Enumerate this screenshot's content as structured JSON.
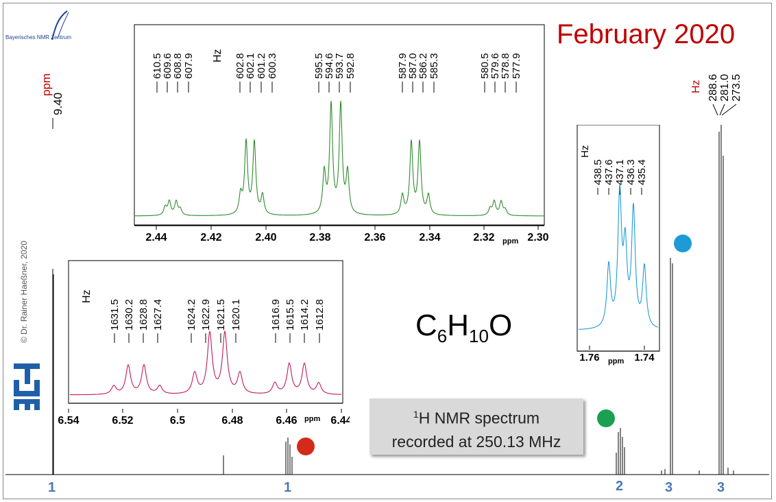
{
  "page": {
    "title": "February 2020",
    "formula": {
      "c": "C",
      "c_n": "6",
      "h": "H",
      "h_n": "10",
      "o": "O"
    },
    "logo_text": "Bayerisches NMR Zentrum",
    "copyright": "© Dr. Rainer Haeßner, 2020",
    "callout": {
      "sup": "1",
      "line1": "H NMR spectrum",
      "line2": "recorded at 250.13 MHz"
    },
    "main_peak_labels": {
      "ppm_unit": "ppm",
      "ppm_value": "9.40",
      "hz_unit": "Hz",
      "hz_values": [
        "288.6",
        "281.0",
        "273.5"
      ]
    },
    "integrals": [
      "1",
      "1",
      "2",
      "3",
      "3"
    ],
    "colors": {
      "title": "#c00000",
      "green_inset": "#2e8b2e",
      "magenta_inset": "#c2185b",
      "blue_inset": "#1e9bd7",
      "red_dot": "#d42a1a",
      "green_dot": "#1aa050",
      "blue_dot": "#1e9bd7",
      "integral_text": "#4a7ab5"
    }
  },
  "chart_data": [
    {
      "type": "line",
      "name": "full spectrum",
      "x_direction": "decreasing",
      "peaks_ppm": [
        9.4,
        6.49,
        2.37,
        1.75,
        1.12
      ],
      "integrals": [
        1,
        1,
        2,
        3,
        3
      ],
      "integral_labels": [
        "1",
        "1",
        "2",
        "3",
        "3"
      ]
    },
    {
      "type": "line",
      "name": "inset 2.30-2.45 ppm",
      "xlim": [
        2.45,
        2.3
      ],
      "xticks": [
        "2.44",
        "2.42",
        "2.40",
        "2.38",
        "2.36",
        "2.34",
        "2.32",
        "2.30"
      ],
      "xunit": "ppm",
      "peak_unit": "Hz",
      "peak_labels_hz": [
        "610.5",
        "609.6",
        "608.8",
        "607.9",
        "602.8",
        "602.1",
        "601.2",
        "600.3",
        "595.5",
        "594.6",
        "593.7",
        "592.8",
        "587.9",
        "587.0",
        "586.2",
        "585.3",
        "580.5",
        "579.6",
        "578.8",
        "577.9"
      ]
    },
    {
      "type": "line",
      "name": "inset 6.44-6.54 ppm",
      "xlim": [
        6.54,
        6.44
      ],
      "xticks": [
        "6.54",
        "6.52",
        "6.5",
        "6.48",
        "6.46",
        "6.44"
      ],
      "xunit": "ppm",
      "peak_unit": "Hz",
      "peak_labels_hz": [
        "1631.5",
        "1630.2",
        "1628.8",
        "1627.4",
        "1624.2",
        "1622.9",
        "1621.5",
        "1620.1",
        "1616.9",
        "1615.5",
        "1614.2",
        "1612.8"
      ]
    },
    {
      "type": "line",
      "name": "inset 1.74-1.76 ppm",
      "xlim": [
        1.765,
        1.735
      ],
      "xticks": [
        "1.76",
        "1.74"
      ],
      "xunit": "ppm",
      "peak_unit": "Hz",
      "peak_labels_hz": [
        "438.5",
        "437.6",
        "437.1",
        "436.3",
        "435.4"
      ]
    }
  ]
}
